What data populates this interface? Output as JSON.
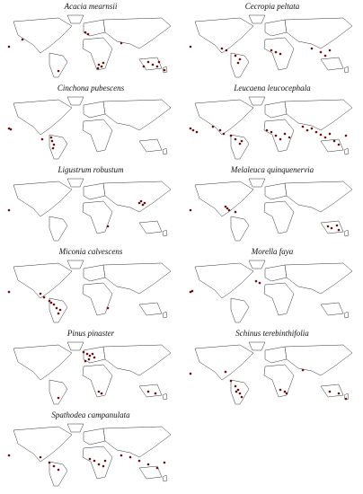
{
  "panels": [
    "Acacia mearnsii",
    "Cecropia peltata",
    "Cinchona pubescens",
    "Leucaena leucocephala",
    "Ligustrum robustum",
    "Melaleuca quinquenervia",
    "Miconia calvescens",
    "Morella faya",
    "Pinus pinaster",
    "Schinus terebinthifolia",
    "Spathodea campanulata"
  ]
}
